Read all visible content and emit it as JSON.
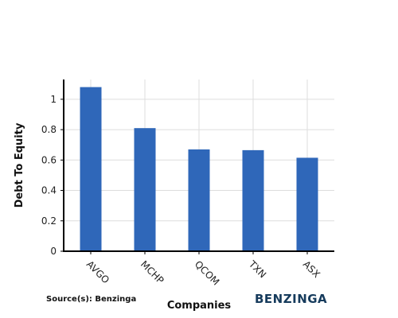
{
  "chart_data": {
    "type": "bar",
    "categories": [
      "AVGO",
      "MCHP",
      "QCOM",
      "TXN",
      "ASX"
    ],
    "values": [
      1.08,
      0.81,
      0.67,
      0.665,
      0.615
    ],
    "xlabel": "Companies",
    "ylabel": "Debt To Equity",
    "ylim": [
      0,
      1.13
    ],
    "yticks": [
      0,
      0.2,
      0.4,
      0.6,
      0.8,
      1
    ],
    "ytick_labels": [
      "0",
      "0.2",
      "0.4",
      "0.6",
      "0.8",
      "1"
    ],
    "grid": true,
    "bar_color": "#2f67b9",
    "grid_color": "#dddddd"
  },
  "footer": {
    "source": "Source(s): Benzinga",
    "brand": "BENZINGA"
  }
}
